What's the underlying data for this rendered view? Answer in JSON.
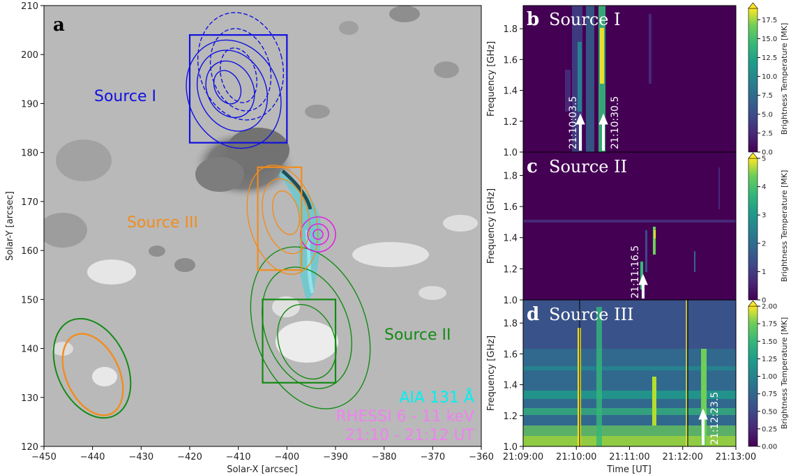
{
  "chart_data": [
    {
      "type": "image-contour",
      "panel": "a",
      "xlabel": "Solar-X [arcsec]",
      "ylabel": "Solar-Y [arcsec]",
      "xlim": [
        -450,
        -360
      ],
      "ylim": [
        120,
        210
      ],
      "xticks": [
        "-450",
        "-440",
        "-430",
        "-420",
        "-410",
        "-400",
        "-390",
        "-380",
        "-370",
        "-360"
      ],
      "yticks": [
        "120",
        "130",
        "140",
        "150",
        "160",
        "170",
        "180",
        "190",
        "200",
        "210"
      ],
      "sources": [
        {
          "name": "Source I",
          "color": "#1010e0",
          "box": {
            "x0": -420,
            "x1": -400,
            "y0": 182,
            "y1": 204
          }
        },
        {
          "name": "Source II",
          "color": "#138a13",
          "box": {
            "x0": -405,
            "x1": -390,
            "y0": 133,
            "y1": 150
          }
        },
        {
          "name": "Source III",
          "color": "#f28c1c",
          "box": {
            "x0": -406,
            "x1": -397,
            "y0": 156,
            "y1": 177
          }
        }
      ],
      "legend": [
        {
          "text": "AIA 131 Å",
          "color": "#00f0f0"
        },
        {
          "text": "RHESSI 6 - 11 keV",
          "color": "#ee82ee"
        },
        {
          "text": "21:10 - 21:12 UT",
          "color": "#ee82ee"
        }
      ]
    },
    {
      "type": "heatmap",
      "panel": "b",
      "title": "Source I",
      "ylabel": "Frequency [GHz]",
      "ylim": [
        1.0,
        1.95
      ],
      "yticks": [
        "1.0",
        "1.2",
        "1.4",
        "1.6",
        "1.8"
      ],
      "colorbar_label": "Brightness Temperature [MK]",
      "colorbar_ticks": [
        "0.0",
        "2.5",
        "5.0",
        "7.5",
        "10.0",
        "12.5",
        "15.0",
        "17.5"
      ],
      "colorbar_max": 19,
      "annotations": [
        {
          "time": "21:10:03.5"
        },
        {
          "time": "21:10:30.5"
        }
      ]
    },
    {
      "type": "heatmap",
      "panel": "c",
      "title": "Source II",
      "ylabel": "Frequency [GHz]",
      "ylim": [
        1.0,
        1.95
      ],
      "yticks": [
        "1.0",
        "1.2",
        "1.4",
        "1.6",
        "1.8"
      ],
      "colorbar_label": "Brightness Temperature [MK]",
      "colorbar_ticks": [
        "0",
        "1",
        "2",
        "3",
        "4",
        "5"
      ],
      "colorbar_max": 5,
      "annotations": [
        {
          "time": "21:11:16.5"
        }
      ]
    },
    {
      "type": "heatmap",
      "panel": "d",
      "title": "Source III",
      "ylabel": "Frequency [GHz]",
      "xlabel": "Time [UT]",
      "ylim": [
        1.0,
        1.95
      ],
      "yticks": [
        "1.0",
        "1.2",
        "1.4",
        "1.6",
        "1.8"
      ],
      "xticks": [
        "21:09:00",
        "21:10:00",
        "21:11:00",
        "21:12:00",
        "21:13:00"
      ],
      "colorbar_label": "Brightness Temperature [MK]",
      "colorbar_ticks": [
        "0.00",
        "0.25",
        "0.50",
        "0.75",
        "1.00",
        "1.25",
        "1.50",
        "1.75",
        "2.00"
      ],
      "colorbar_max": 2.0,
      "annotations": [
        {
          "time": "21:12:23.5"
        }
      ]
    }
  ]
}
